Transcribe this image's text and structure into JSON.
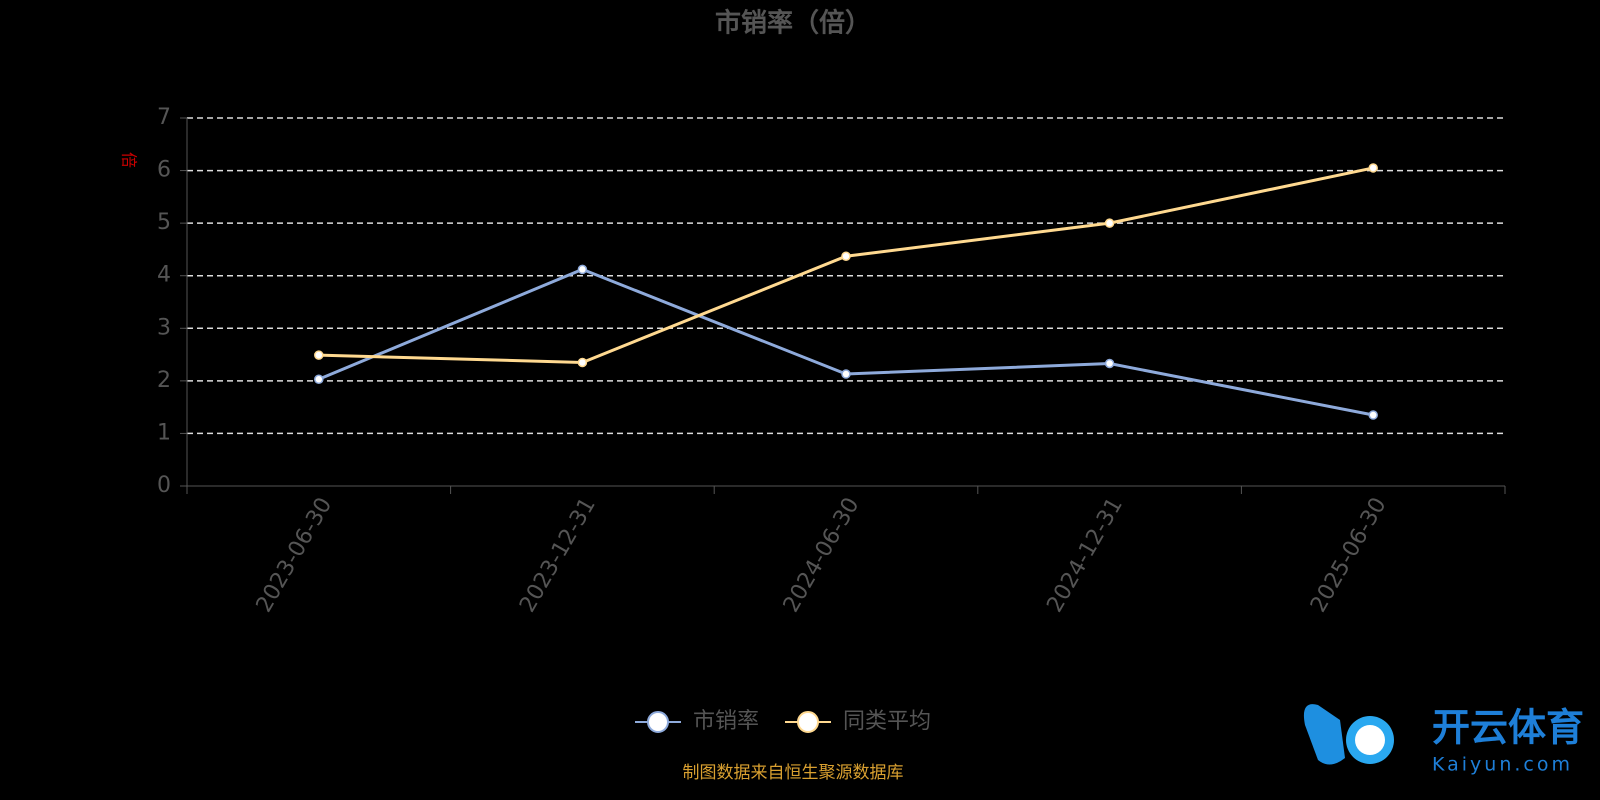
{
  "chart_data": {
    "type": "line",
    "title": "市销率（倍）",
    "y_label": "倍",
    "categories": [
      "2023-06-30",
      "2023-12-31",
      "2024-06-30",
      "2024-12-31",
      "2025-06-30"
    ],
    "series": [
      {
        "name": "市销率",
        "color": "#8eaadb",
        "values": [
          2.03,
          4.12,
          2.13,
          2.33,
          1.35
        ]
      },
      {
        "name": "同类平均",
        "color": "#ffd990",
        "values": [
          2.49,
          2.35,
          4.37,
          5.0,
          6.05
        ]
      }
    ],
    "ylim": [
      0,
      7
    ],
    "yticks": [
      0,
      1,
      2,
      3,
      4,
      5,
      6,
      7
    ],
    "grid": true,
    "source": "制图数据来自恒生聚源数据库",
    "watermark": {
      "name": "开云体育",
      "site": "Kaiyun.com"
    }
  }
}
